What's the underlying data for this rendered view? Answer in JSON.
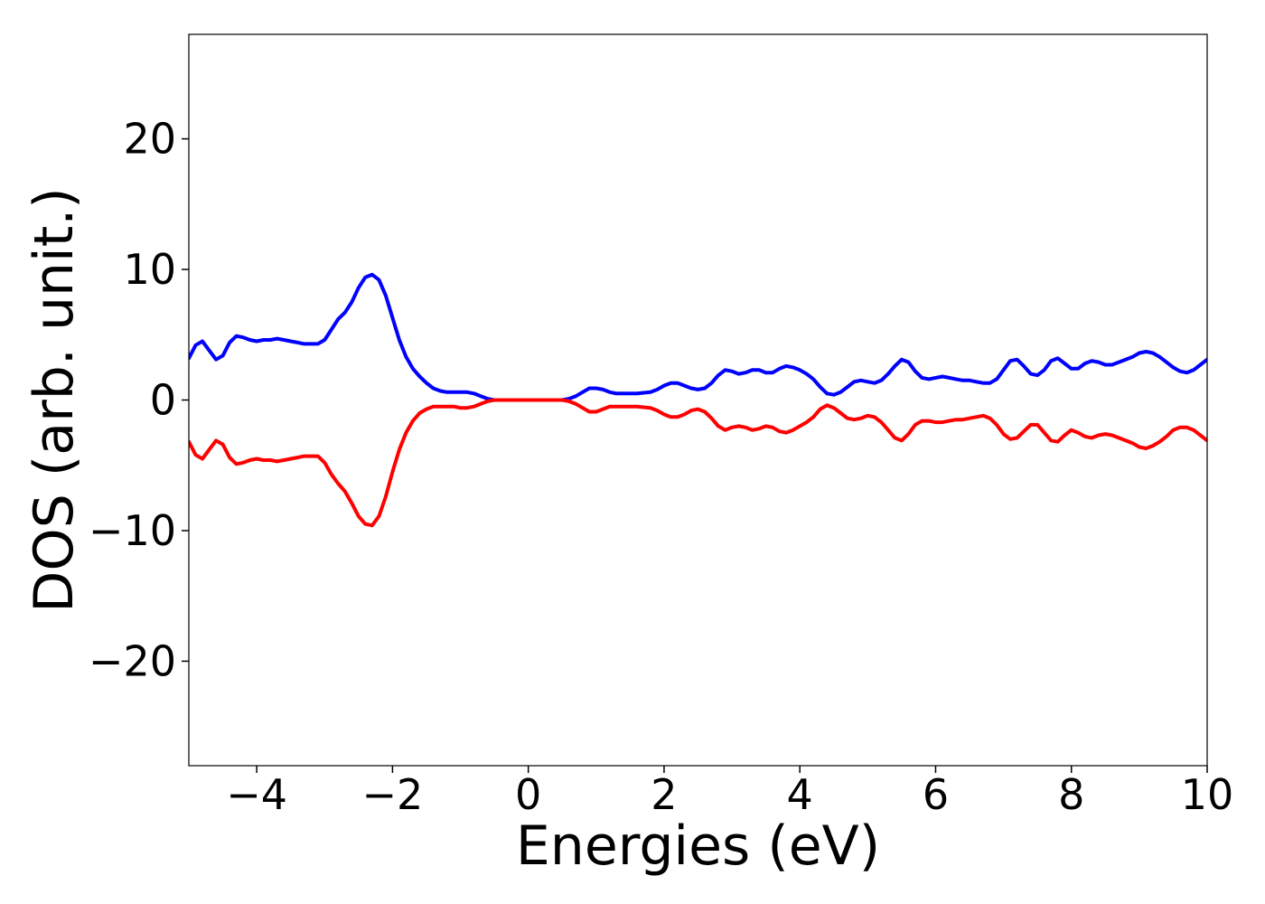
{
  "chart_data": {
    "type": "line",
    "xlabel": "Energies (eV)",
    "ylabel": "DOS (arb. unit.)",
    "xlim": [
      -5,
      10
    ],
    "ylim": [
      -28,
      28
    ],
    "xticks": [
      -4,
      -2,
      0,
      2,
      4,
      6,
      8,
      10
    ],
    "xtick_labels": [
      "−4",
      "−2",
      "0",
      "2",
      "4",
      "6",
      "8",
      "10"
    ],
    "yticks": [
      -20,
      -10,
      0,
      10,
      20
    ],
    "ytick_labels": [
      "−20",
      "−10",
      "0",
      "10",
      "20"
    ],
    "grid": false,
    "legend": "none",
    "series": [
      {
        "color": "#0000ff",
        "points": [
          [
            -5.0,
            3.2
          ],
          [
            -4.9,
            4.2
          ],
          [
            -4.8,
            4.5
          ],
          [
            -4.7,
            3.8
          ],
          [
            -4.6,
            3.1
          ],
          [
            -4.5,
            3.4
          ],
          [
            -4.4,
            4.4
          ],
          [
            -4.3,
            4.9
          ],
          [
            -4.2,
            4.8
          ],
          [
            -4.1,
            4.6
          ],
          [
            -4.0,
            4.5
          ],
          [
            -3.9,
            4.6
          ],
          [
            -3.8,
            4.6
          ],
          [
            -3.7,
            4.7
          ],
          [
            -3.6,
            4.6
          ],
          [
            -3.5,
            4.5
          ],
          [
            -3.4,
            4.4
          ],
          [
            -3.3,
            4.3
          ],
          [
            -3.2,
            4.3
          ],
          [
            -3.1,
            4.3
          ],
          [
            -3.0,
            4.6
          ],
          [
            -2.9,
            5.4
          ],
          [
            -2.8,
            6.2
          ],
          [
            -2.7,
            6.7
          ],
          [
            -2.6,
            7.5
          ],
          [
            -2.5,
            8.6
          ],
          [
            -2.4,
            9.4
          ],
          [
            -2.3,
            9.6
          ],
          [
            -2.2,
            9.2
          ],
          [
            -2.1,
            8.0
          ],
          [
            -2.0,
            6.3
          ],
          [
            -1.9,
            4.6
          ],
          [
            -1.8,
            3.3
          ],
          [
            -1.7,
            2.4
          ],
          [
            -1.6,
            1.8
          ],
          [
            -1.5,
            1.3
          ],
          [
            -1.4,
            0.9
          ],
          [
            -1.3,
            0.7
          ],
          [
            -1.2,
            0.6
          ],
          [
            -1.1,
            0.6
          ],
          [
            -1.0,
            0.6
          ],
          [
            -0.9,
            0.6
          ],
          [
            -0.8,
            0.5
          ],
          [
            -0.7,
            0.3
          ],
          [
            -0.6,
            0.1
          ],
          [
            -0.5,
            0.0
          ],
          [
            -0.3,
            0.0
          ],
          [
            0.0,
            0.0
          ],
          [
            0.3,
            0.0
          ],
          [
            0.5,
            0.0
          ],
          [
            0.6,
            0.1
          ],
          [
            0.7,
            0.3
          ],
          [
            0.8,
            0.6
          ],
          [
            0.9,
            0.9
          ],
          [
            1.0,
            0.9
          ],
          [
            1.1,
            0.8
          ],
          [
            1.2,
            0.6
          ],
          [
            1.3,
            0.5
          ],
          [
            1.4,
            0.5
          ],
          [
            1.6,
            0.5
          ],
          [
            1.8,
            0.6
          ],
          [
            1.9,
            0.8
          ],
          [
            2.0,
            1.1
          ],
          [
            2.1,
            1.3
          ],
          [
            2.2,
            1.3
          ],
          [
            2.3,
            1.1
          ],
          [
            2.4,
            0.9
          ],
          [
            2.5,
            0.8
          ],
          [
            2.6,
            0.9
          ],
          [
            2.7,
            1.3
          ],
          [
            2.8,
            1.9
          ],
          [
            2.9,
            2.3
          ],
          [
            3.0,
            2.2
          ],
          [
            3.1,
            2.0
          ],
          [
            3.2,
            2.1
          ],
          [
            3.3,
            2.3
          ],
          [
            3.4,
            2.3
          ],
          [
            3.5,
            2.1
          ],
          [
            3.6,
            2.1
          ],
          [
            3.7,
            2.4
          ],
          [
            3.8,
            2.6
          ],
          [
            3.9,
            2.5
          ],
          [
            4.0,
            2.3
          ],
          [
            4.1,
            2.0
          ],
          [
            4.2,
            1.6
          ],
          [
            4.3,
            1.0
          ],
          [
            4.4,
            0.5
          ],
          [
            4.5,
            0.4
          ],
          [
            4.6,
            0.6
          ],
          [
            4.7,
            1.0
          ],
          [
            4.8,
            1.4
          ],
          [
            4.9,
            1.5
          ],
          [
            5.0,
            1.4
          ],
          [
            5.1,
            1.3
          ],
          [
            5.2,
            1.5
          ],
          [
            5.3,
            2.0
          ],
          [
            5.4,
            2.6
          ],
          [
            5.5,
            3.1
          ],
          [
            5.6,
            2.9
          ],
          [
            5.7,
            2.2
          ],
          [
            5.8,
            1.7
          ],
          [
            5.9,
            1.6
          ],
          [
            6.0,
            1.7
          ],
          [
            6.1,
            1.8
          ],
          [
            6.2,
            1.7
          ],
          [
            6.3,
            1.6
          ],
          [
            6.4,
            1.5
          ],
          [
            6.5,
            1.5
          ],
          [
            6.6,
            1.4
          ],
          [
            6.7,
            1.3
          ],
          [
            6.8,
            1.3
          ],
          [
            6.9,
            1.6
          ],
          [
            7.0,
            2.3
          ],
          [
            7.1,
            3.0
          ],
          [
            7.2,
            3.1
          ],
          [
            7.3,
            2.6
          ],
          [
            7.4,
            2.0
          ],
          [
            7.5,
            1.9
          ],
          [
            7.6,
            2.3
          ],
          [
            7.7,
            3.0
          ],
          [
            7.8,
            3.2
          ],
          [
            7.9,
            2.8
          ],
          [
            8.0,
            2.4
          ],
          [
            8.1,
            2.4
          ],
          [
            8.2,
            2.8
          ],
          [
            8.3,
            3.0
          ],
          [
            8.4,
            2.9
          ],
          [
            8.5,
            2.7
          ],
          [
            8.6,
            2.7
          ],
          [
            8.7,
            2.9
          ],
          [
            8.8,
            3.1
          ],
          [
            8.9,
            3.3
          ],
          [
            9.0,
            3.6
          ],
          [
            9.1,
            3.7
          ],
          [
            9.2,
            3.6
          ],
          [
            9.3,
            3.3
          ],
          [
            9.4,
            2.9
          ],
          [
            9.5,
            2.5
          ],
          [
            9.6,
            2.2
          ],
          [
            9.7,
            2.1
          ],
          [
            9.8,
            2.3
          ],
          [
            9.9,
            2.7
          ],
          [
            10.0,
            3.1
          ]
        ]
      },
      {
        "color": "#ff0000",
        "points": [
          [
            -5.0,
            -3.2
          ],
          [
            -4.9,
            -4.2
          ],
          [
            -4.8,
            -4.5
          ],
          [
            -4.7,
            -3.8
          ],
          [
            -4.6,
            -3.1
          ],
          [
            -4.5,
            -3.4
          ],
          [
            -4.4,
            -4.4
          ],
          [
            -4.3,
            -4.9
          ],
          [
            -4.2,
            -4.8
          ],
          [
            -4.1,
            -4.6
          ],
          [
            -4.0,
            -4.5
          ],
          [
            -3.9,
            -4.6
          ],
          [
            -3.8,
            -4.6
          ],
          [
            -3.7,
            -4.7
          ],
          [
            -3.6,
            -4.6
          ],
          [
            -3.5,
            -4.5
          ],
          [
            -3.4,
            -4.4
          ],
          [
            -3.3,
            -4.3
          ],
          [
            -3.2,
            -4.3
          ],
          [
            -3.1,
            -4.3
          ],
          [
            -3.0,
            -4.8
          ],
          [
            -2.9,
            -5.7
          ],
          [
            -2.8,
            -6.4
          ],
          [
            -2.7,
            -7.0
          ],
          [
            -2.6,
            -7.9
          ],
          [
            -2.5,
            -8.9
          ],
          [
            -2.4,
            -9.5
          ],
          [
            -2.3,
            -9.6
          ],
          [
            -2.2,
            -8.9
          ],
          [
            -2.1,
            -7.4
          ],
          [
            -2.0,
            -5.5
          ],
          [
            -1.9,
            -3.8
          ],
          [
            -1.8,
            -2.5
          ],
          [
            -1.7,
            -1.6
          ],
          [
            -1.6,
            -1.0
          ],
          [
            -1.5,
            -0.7
          ],
          [
            -1.4,
            -0.5
          ],
          [
            -1.3,
            -0.5
          ],
          [
            -1.2,
            -0.5
          ],
          [
            -1.1,
            -0.5
          ],
          [
            -1.0,
            -0.6
          ],
          [
            -0.9,
            -0.6
          ],
          [
            -0.8,
            -0.5
          ],
          [
            -0.7,
            -0.3
          ],
          [
            -0.6,
            -0.1
          ],
          [
            -0.5,
            0.0
          ],
          [
            -0.3,
            0.0
          ],
          [
            0.0,
            0.0
          ],
          [
            0.3,
            0.0
          ],
          [
            0.5,
            0.0
          ],
          [
            0.6,
            -0.1
          ],
          [
            0.7,
            -0.3
          ],
          [
            0.8,
            -0.6
          ],
          [
            0.9,
            -0.9
          ],
          [
            1.0,
            -0.9
          ],
          [
            1.1,
            -0.7
          ],
          [
            1.2,
            -0.5
          ],
          [
            1.3,
            -0.5
          ],
          [
            1.4,
            -0.5
          ],
          [
            1.6,
            -0.5
          ],
          [
            1.8,
            -0.6
          ],
          [
            1.9,
            -0.8
          ],
          [
            2.0,
            -1.1
          ],
          [
            2.1,
            -1.3
          ],
          [
            2.2,
            -1.3
          ],
          [
            2.3,
            -1.1
          ],
          [
            2.4,
            -0.8
          ],
          [
            2.5,
            -0.7
          ],
          [
            2.6,
            -0.9
          ],
          [
            2.7,
            -1.4
          ],
          [
            2.8,
            -2.0
          ],
          [
            2.9,
            -2.3
          ],
          [
            3.0,
            -2.1
          ],
          [
            3.1,
            -2.0
          ],
          [
            3.2,
            -2.1
          ],
          [
            3.3,
            -2.3
          ],
          [
            3.4,
            -2.2
          ],
          [
            3.5,
            -2.0
          ],
          [
            3.6,
            -2.1
          ],
          [
            3.7,
            -2.4
          ],
          [
            3.8,
            -2.5
          ],
          [
            3.9,
            -2.3
          ],
          [
            4.0,
            -2.0
          ],
          [
            4.1,
            -1.7
          ],
          [
            4.2,
            -1.3
          ],
          [
            4.3,
            -0.7
          ],
          [
            4.4,
            -0.4
          ],
          [
            4.5,
            -0.6
          ],
          [
            4.6,
            -1.0
          ],
          [
            4.7,
            -1.4
          ],
          [
            4.8,
            -1.5
          ],
          [
            4.9,
            -1.4
          ],
          [
            5.0,
            -1.2
          ],
          [
            5.1,
            -1.3
          ],
          [
            5.2,
            -1.7
          ],
          [
            5.3,
            -2.3
          ],
          [
            5.4,
            -2.9
          ],
          [
            5.5,
            -3.1
          ],
          [
            5.6,
            -2.6
          ],
          [
            5.7,
            -1.9
          ],
          [
            5.8,
            -1.6
          ],
          [
            5.9,
            -1.6
          ],
          [
            6.0,
            -1.7
          ],
          [
            6.1,
            -1.7
          ],
          [
            6.2,
            -1.6
          ],
          [
            6.3,
            -1.5
          ],
          [
            6.4,
            -1.5
          ],
          [
            6.5,
            -1.4
          ],
          [
            6.6,
            -1.3
          ],
          [
            6.7,
            -1.2
          ],
          [
            6.8,
            -1.4
          ],
          [
            6.9,
            -1.9
          ],
          [
            7.0,
            -2.6
          ],
          [
            7.1,
            -3.0
          ],
          [
            7.2,
            -2.9
          ],
          [
            7.3,
            -2.4
          ],
          [
            7.4,
            -1.9
          ],
          [
            7.5,
            -1.9
          ],
          [
            7.6,
            -2.5
          ],
          [
            7.7,
            -3.1
          ],
          [
            7.8,
            -3.2
          ],
          [
            7.9,
            -2.7
          ],
          [
            8.0,
            -2.3
          ],
          [
            8.1,
            -2.5
          ],
          [
            8.2,
            -2.8
          ],
          [
            8.3,
            -2.9
          ],
          [
            8.4,
            -2.7
          ],
          [
            8.5,
            -2.6
          ],
          [
            8.6,
            -2.7
          ],
          [
            8.7,
            -2.9
          ],
          [
            8.8,
            -3.1
          ],
          [
            8.9,
            -3.3
          ],
          [
            9.0,
            -3.6
          ],
          [
            9.1,
            -3.7
          ],
          [
            9.2,
            -3.5
          ],
          [
            9.3,
            -3.2
          ],
          [
            9.4,
            -2.8
          ],
          [
            9.5,
            -2.3
          ],
          [
            9.6,
            -2.1
          ],
          [
            9.7,
            -2.1
          ],
          [
            9.8,
            -2.3
          ],
          [
            9.9,
            -2.7
          ],
          [
            10.0,
            -3.1
          ]
        ]
      }
    ]
  }
}
